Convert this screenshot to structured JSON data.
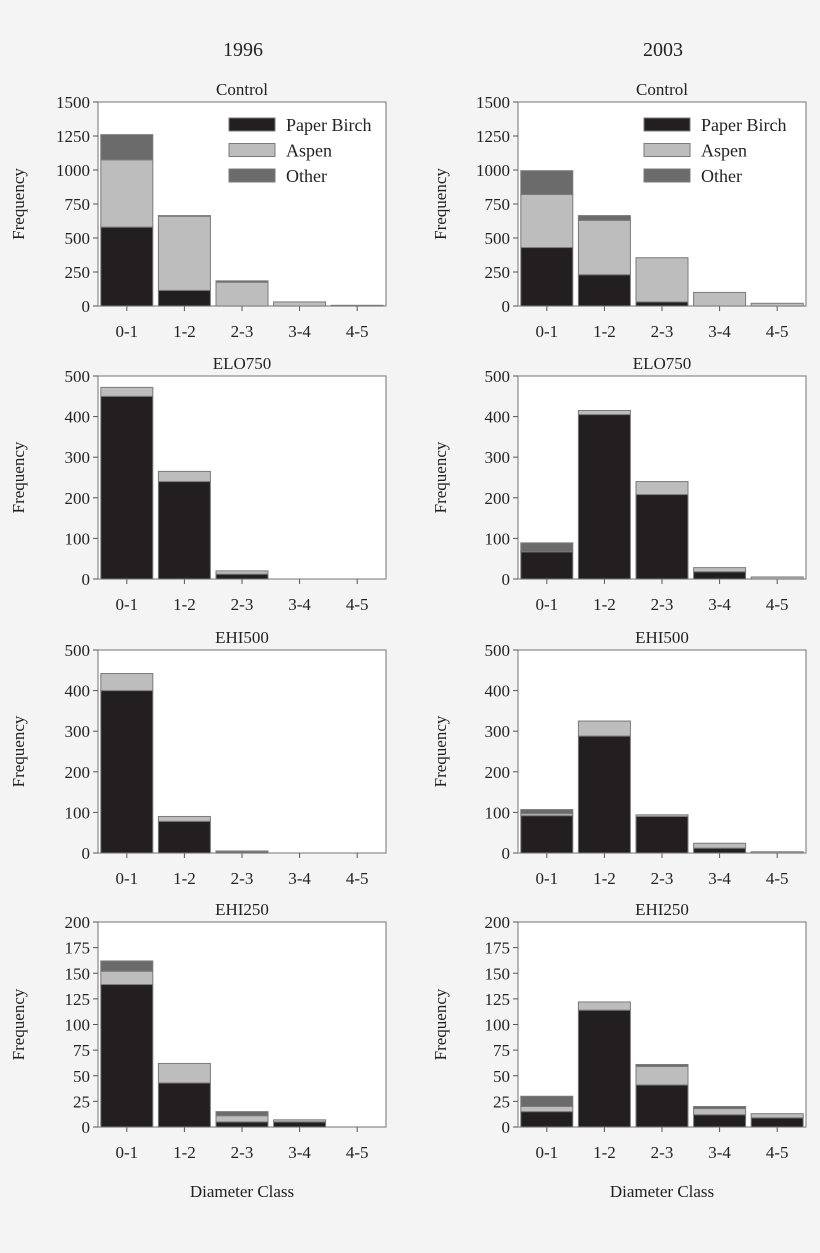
{
  "colors": {
    "Paper Birch": "#231f20",
    "Aspen": "#bdbdbd",
    "Other": "#6b6b6b",
    "outline": "#7a7a7a"
  },
  "column_titles": [
    "1996",
    "2003"
  ],
  "chart_data": [
    {
      "type": "bar",
      "stacked": true,
      "year": "1996",
      "title": "Control",
      "ylabel": "Frequency",
      "xlabel": "",
      "ylim": [
        0,
        1500
      ],
      "yticks": [
        0,
        250,
        500,
        750,
        1000,
        1250,
        1500
      ],
      "categories": [
        "0-1",
        "1-2",
        "2-3",
        "3-4",
        "4-5"
      ],
      "legend": "top-right",
      "series": [
        {
          "name": "Paper Birch",
          "values": [
            580,
            115,
            0,
            0,
            0
          ]
        },
        {
          "name": "Aspen",
          "values": [
            495,
            545,
            175,
            30,
            5
          ]
        },
        {
          "name": "Other",
          "values": [
            185,
            5,
            10,
            0,
            0
          ]
        }
      ]
    },
    {
      "type": "bar",
      "stacked": true,
      "year": "2003",
      "title": "Control",
      "ylabel": "Frequency",
      "xlabel": "",
      "ylim": [
        0,
        1500
      ],
      "yticks": [
        0,
        250,
        500,
        750,
        1000,
        1250,
        1500
      ],
      "categories": [
        "0-1",
        "1-2",
        "2-3",
        "3-4",
        "4-5"
      ],
      "legend": "top-right",
      "series": [
        {
          "name": "Paper Birch",
          "values": [
            430,
            230,
            30,
            0,
            0
          ]
        },
        {
          "name": "Aspen",
          "values": [
            390,
            400,
            325,
            100,
            20
          ]
        },
        {
          "name": "Other",
          "values": [
            175,
            35,
            0,
            0,
            0
          ]
        }
      ]
    },
    {
      "type": "bar",
      "stacked": true,
      "year": "1996",
      "title": "ELO750",
      "ylabel": "Frequency",
      "xlabel": "",
      "ylim": [
        0,
        500
      ],
      "yticks": [
        0,
        100,
        200,
        300,
        400,
        500
      ],
      "categories": [
        "0-1",
        "1-2",
        "2-3",
        "3-4",
        "4-5"
      ],
      "series": [
        {
          "name": "Paper Birch",
          "values": [
            450,
            240,
            12,
            0,
            0
          ]
        },
        {
          "name": "Aspen",
          "values": [
            22,
            25,
            8,
            0,
            0
          ]
        },
        {
          "name": "Other",
          "values": [
            0,
            0,
            0,
            0,
            0
          ]
        }
      ]
    },
    {
      "type": "bar",
      "stacked": true,
      "year": "2003",
      "title": "ELO750",
      "ylabel": "Frequency",
      "xlabel": "",
      "ylim": [
        0,
        500
      ],
      "yticks": [
        0,
        100,
        200,
        300,
        400,
        500
      ],
      "categories": [
        "0-1",
        "1-2",
        "2-3",
        "3-4",
        "4-5"
      ],
      "series": [
        {
          "name": "Paper Birch",
          "values": [
            67,
            405,
            208,
            18,
            0
          ]
        },
        {
          "name": "Aspen",
          "values": [
            0,
            10,
            32,
            10,
            5
          ]
        },
        {
          "name": "Other",
          "values": [
            22,
            0,
            0,
            0,
            0
          ]
        }
      ]
    },
    {
      "type": "bar",
      "stacked": true,
      "year": "1996",
      "title": "EHI500",
      "ylabel": "Frequency",
      "xlabel": "",
      "ylim": [
        0,
        500
      ],
      "yticks": [
        0,
        100,
        200,
        300,
        400,
        500
      ],
      "categories": [
        "0-1",
        "1-2",
        "2-3",
        "3-4",
        "4-5"
      ],
      "series": [
        {
          "name": "Paper Birch",
          "values": [
            400,
            78,
            3,
            0,
            0
          ]
        },
        {
          "name": "Aspen",
          "values": [
            42,
            12,
            2,
            0,
            0
          ]
        },
        {
          "name": "Other",
          "values": [
            0,
            0,
            0,
            0,
            0
          ]
        }
      ]
    },
    {
      "type": "bar",
      "stacked": true,
      "year": "2003",
      "title": "EHI500",
      "ylabel": "Frequency",
      "xlabel": "",
      "ylim": [
        0,
        500
      ],
      "yticks": [
        0,
        100,
        200,
        300,
        400,
        500
      ],
      "categories": [
        "0-1",
        "1-2",
        "2-3",
        "3-4",
        "4-5"
      ],
      "series": [
        {
          "name": "Paper Birch",
          "values": [
            92,
            288,
            90,
            12,
            0
          ]
        },
        {
          "name": "Aspen",
          "values": [
            5,
            37,
            4,
            12,
            3
          ]
        },
        {
          "name": "Other",
          "values": [
            10,
            0,
            0,
            0,
            0
          ]
        }
      ]
    },
    {
      "type": "bar",
      "stacked": true,
      "year": "1996",
      "title": "EHI250",
      "ylabel": "Frequency",
      "xlabel": "Diameter Class",
      "ylim": [
        0,
        200
      ],
      "yticks": [
        0,
        25,
        50,
        75,
        100,
        125,
        150,
        175,
        200
      ],
      "categories": [
        "0-1",
        "1-2",
        "2-3",
        "3-4",
        "4-5"
      ],
      "series": [
        {
          "name": "Paper Birch",
          "values": [
            139,
            43,
            5,
            5,
            0
          ]
        },
        {
          "name": "Aspen",
          "values": [
            13,
            19,
            6,
            2,
            0
          ]
        },
        {
          "name": "Other",
          "values": [
            10,
            0,
            4,
            0,
            0
          ]
        }
      ]
    },
    {
      "type": "bar",
      "stacked": true,
      "year": "2003",
      "title": "EHI250",
      "ylabel": "Frequency",
      "xlabel": "Diameter Class",
      "ylim": [
        0,
        200
      ],
      "yticks": [
        0,
        25,
        50,
        75,
        100,
        125,
        150,
        175,
        200
      ],
      "categories": [
        "0-1",
        "1-2",
        "2-3",
        "3-4",
        "4-5"
      ],
      "series": [
        {
          "name": "Paper Birch",
          "values": [
            15,
            114,
            41,
            12,
            9
          ]
        },
        {
          "name": "Aspen",
          "values": [
            5,
            8,
            18,
            6,
            4
          ]
        },
        {
          "name": "Other",
          "values": [
            10,
            0,
            2,
            2,
            0
          ]
        }
      ]
    }
  ]
}
